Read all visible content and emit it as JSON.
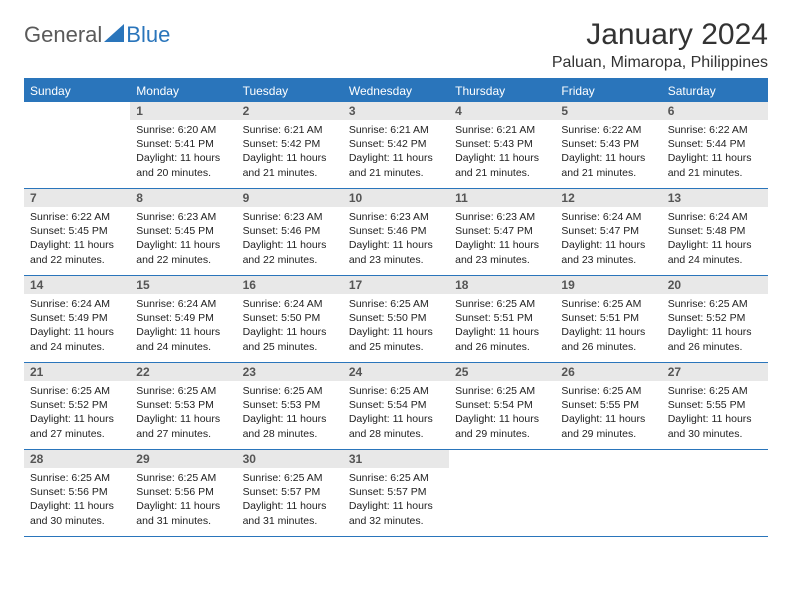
{
  "brand": {
    "name1": "General",
    "name2": "Blue"
  },
  "title": "January 2024",
  "location": "Paluan, Mimaropa, Philippines",
  "colors": {
    "accent": "#2a75bb",
    "daynum_bg": "#e8e8e8",
    "text": "#333333"
  },
  "dayHeaders": [
    "Sunday",
    "Monday",
    "Tuesday",
    "Wednesday",
    "Thursday",
    "Friday",
    "Saturday"
  ],
  "weeks": [
    [
      {
        "day": "",
        "sunrise": "",
        "sunset": "",
        "daylight": ""
      },
      {
        "day": "1",
        "sunrise": "Sunrise: 6:20 AM",
        "sunset": "Sunset: 5:41 PM",
        "daylight": "Daylight: 11 hours and 20 minutes."
      },
      {
        "day": "2",
        "sunrise": "Sunrise: 6:21 AM",
        "sunset": "Sunset: 5:42 PM",
        "daylight": "Daylight: 11 hours and 21 minutes."
      },
      {
        "day": "3",
        "sunrise": "Sunrise: 6:21 AM",
        "sunset": "Sunset: 5:42 PM",
        "daylight": "Daylight: 11 hours and 21 minutes."
      },
      {
        "day": "4",
        "sunrise": "Sunrise: 6:21 AM",
        "sunset": "Sunset: 5:43 PM",
        "daylight": "Daylight: 11 hours and 21 minutes."
      },
      {
        "day": "5",
        "sunrise": "Sunrise: 6:22 AM",
        "sunset": "Sunset: 5:43 PM",
        "daylight": "Daylight: 11 hours and 21 minutes."
      },
      {
        "day": "6",
        "sunrise": "Sunrise: 6:22 AM",
        "sunset": "Sunset: 5:44 PM",
        "daylight": "Daylight: 11 hours and 21 minutes."
      }
    ],
    [
      {
        "day": "7",
        "sunrise": "Sunrise: 6:22 AM",
        "sunset": "Sunset: 5:45 PM",
        "daylight": "Daylight: 11 hours and 22 minutes."
      },
      {
        "day": "8",
        "sunrise": "Sunrise: 6:23 AM",
        "sunset": "Sunset: 5:45 PM",
        "daylight": "Daylight: 11 hours and 22 minutes."
      },
      {
        "day": "9",
        "sunrise": "Sunrise: 6:23 AM",
        "sunset": "Sunset: 5:46 PM",
        "daylight": "Daylight: 11 hours and 22 minutes."
      },
      {
        "day": "10",
        "sunrise": "Sunrise: 6:23 AM",
        "sunset": "Sunset: 5:46 PM",
        "daylight": "Daylight: 11 hours and 23 minutes."
      },
      {
        "day": "11",
        "sunrise": "Sunrise: 6:23 AM",
        "sunset": "Sunset: 5:47 PM",
        "daylight": "Daylight: 11 hours and 23 minutes."
      },
      {
        "day": "12",
        "sunrise": "Sunrise: 6:24 AM",
        "sunset": "Sunset: 5:47 PM",
        "daylight": "Daylight: 11 hours and 23 minutes."
      },
      {
        "day": "13",
        "sunrise": "Sunrise: 6:24 AM",
        "sunset": "Sunset: 5:48 PM",
        "daylight": "Daylight: 11 hours and 24 minutes."
      }
    ],
    [
      {
        "day": "14",
        "sunrise": "Sunrise: 6:24 AM",
        "sunset": "Sunset: 5:49 PM",
        "daylight": "Daylight: 11 hours and 24 minutes."
      },
      {
        "day": "15",
        "sunrise": "Sunrise: 6:24 AM",
        "sunset": "Sunset: 5:49 PM",
        "daylight": "Daylight: 11 hours and 24 minutes."
      },
      {
        "day": "16",
        "sunrise": "Sunrise: 6:24 AM",
        "sunset": "Sunset: 5:50 PM",
        "daylight": "Daylight: 11 hours and 25 minutes."
      },
      {
        "day": "17",
        "sunrise": "Sunrise: 6:25 AM",
        "sunset": "Sunset: 5:50 PM",
        "daylight": "Daylight: 11 hours and 25 minutes."
      },
      {
        "day": "18",
        "sunrise": "Sunrise: 6:25 AM",
        "sunset": "Sunset: 5:51 PM",
        "daylight": "Daylight: 11 hours and 26 minutes."
      },
      {
        "day": "19",
        "sunrise": "Sunrise: 6:25 AM",
        "sunset": "Sunset: 5:51 PM",
        "daylight": "Daylight: 11 hours and 26 minutes."
      },
      {
        "day": "20",
        "sunrise": "Sunrise: 6:25 AM",
        "sunset": "Sunset: 5:52 PM",
        "daylight": "Daylight: 11 hours and 26 minutes."
      }
    ],
    [
      {
        "day": "21",
        "sunrise": "Sunrise: 6:25 AM",
        "sunset": "Sunset: 5:52 PM",
        "daylight": "Daylight: 11 hours and 27 minutes."
      },
      {
        "day": "22",
        "sunrise": "Sunrise: 6:25 AM",
        "sunset": "Sunset: 5:53 PM",
        "daylight": "Daylight: 11 hours and 27 minutes."
      },
      {
        "day": "23",
        "sunrise": "Sunrise: 6:25 AM",
        "sunset": "Sunset: 5:53 PM",
        "daylight": "Daylight: 11 hours and 28 minutes."
      },
      {
        "day": "24",
        "sunrise": "Sunrise: 6:25 AM",
        "sunset": "Sunset: 5:54 PM",
        "daylight": "Daylight: 11 hours and 28 minutes."
      },
      {
        "day": "25",
        "sunrise": "Sunrise: 6:25 AM",
        "sunset": "Sunset: 5:54 PM",
        "daylight": "Daylight: 11 hours and 29 minutes."
      },
      {
        "day": "26",
        "sunrise": "Sunrise: 6:25 AM",
        "sunset": "Sunset: 5:55 PM",
        "daylight": "Daylight: 11 hours and 29 minutes."
      },
      {
        "day": "27",
        "sunrise": "Sunrise: 6:25 AM",
        "sunset": "Sunset: 5:55 PM",
        "daylight": "Daylight: 11 hours and 30 minutes."
      }
    ],
    [
      {
        "day": "28",
        "sunrise": "Sunrise: 6:25 AM",
        "sunset": "Sunset: 5:56 PM",
        "daylight": "Daylight: 11 hours and 30 minutes."
      },
      {
        "day": "29",
        "sunrise": "Sunrise: 6:25 AM",
        "sunset": "Sunset: 5:56 PM",
        "daylight": "Daylight: 11 hours and 31 minutes."
      },
      {
        "day": "30",
        "sunrise": "Sunrise: 6:25 AM",
        "sunset": "Sunset: 5:57 PM",
        "daylight": "Daylight: 11 hours and 31 minutes."
      },
      {
        "day": "31",
        "sunrise": "Sunrise: 6:25 AM",
        "sunset": "Sunset: 5:57 PM",
        "daylight": "Daylight: 11 hours and 32 minutes."
      },
      {
        "day": "",
        "sunrise": "",
        "sunset": "",
        "daylight": ""
      },
      {
        "day": "",
        "sunrise": "",
        "sunset": "",
        "daylight": ""
      },
      {
        "day": "",
        "sunrise": "",
        "sunset": "",
        "daylight": ""
      }
    ]
  ]
}
